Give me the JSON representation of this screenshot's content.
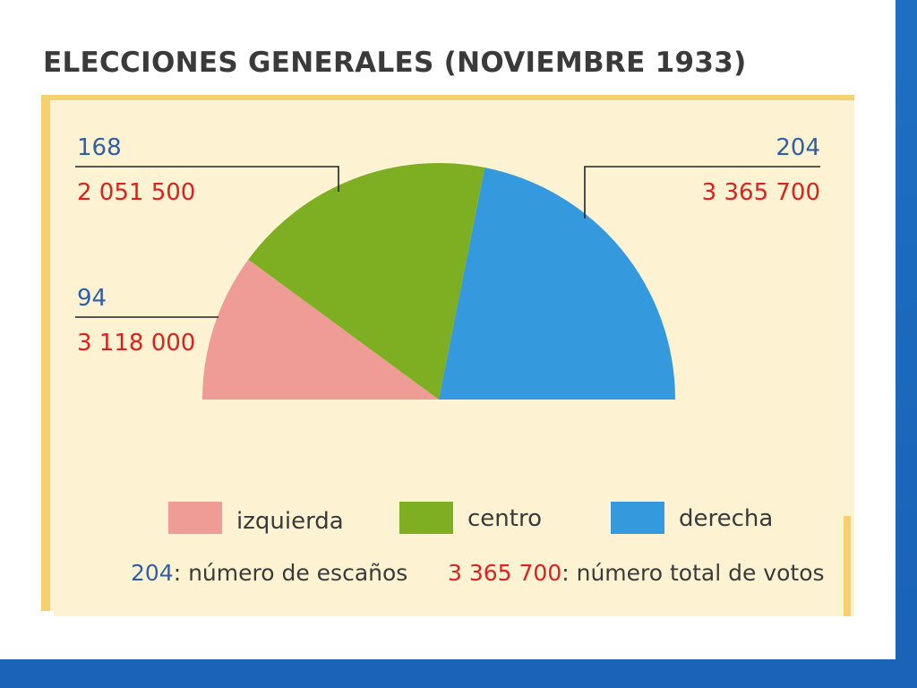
{
  "title": "ELECCIONES GENERALES (NOVIEMBRE 1933)",
  "chart_data": {
    "type": "pie",
    "shape": "semicircle",
    "title": "ELECCIONES GENERALES (NOVIEMBRE 1933)",
    "categories": [
      "izquierda",
      "centro",
      "derecha"
    ],
    "values": [
      94,
      168,
      204
    ],
    "votes": [
      3118000,
      2051500,
      3365700
    ],
    "value_labels": [
      "94",
      "168",
      "204"
    ],
    "vote_labels": [
      "3 118 000",
      "2 051 500",
      "3 365 700"
    ],
    "colors": [
      "#f09c96",
      "#7eae22",
      "#3599de"
    ],
    "legend_position": "bottom"
  },
  "legend": {
    "items": [
      {
        "label": "izquierda",
        "color": "#f09c96"
      },
      {
        "label": "centro",
        "color": "#7eae22"
      },
      {
        "label": "derecha",
        "color": "#3599de"
      }
    ],
    "note_seats_value": "204",
    "note_seats_text": ": número de escaños",
    "note_votes_value": "3 365 700",
    "note_votes_text": ": número total de votos"
  },
  "colors": {
    "seats_text": "#2f5fa6",
    "votes_text": "#e0201c",
    "panel_bg": "#fdf3d3",
    "panel_border": "#f6cf6e",
    "frame_blue": "#1a63b8"
  }
}
